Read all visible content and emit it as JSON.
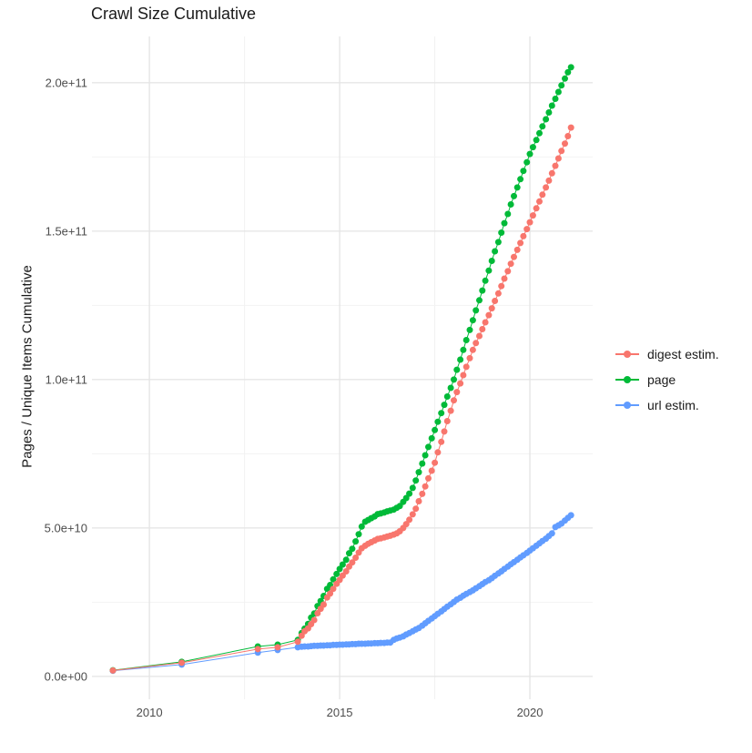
{
  "title": "Crawl Size Cumulative",
  "colors": {
    "background": "#FFFFFF",
    "grid_major": "#E4E4E4",
    "grid_minor": "#F2F2F2",
    "tick_text": "#4D4D4D",
    "title_text": "#1A1A1A",
    "digest": "#F8766D",
    "page": "#00BA38",
    "url": "#619CFF"
  },
  "chart_data": {
    "type": "scatter",
    "title": "Crawl Size Cumulative",
    "xlabel": "",
    "ylabel": "Pages / Unique Items Cumulative",
    "x_unit": "year",
    "value_unit_multiplier": 1000000000,
    "xlim": [
      2008.49,
      2021.65
    ],
    "ylim_e9": [
      -7.7,
      215.6
    ],
    "grid": true,
    "legend_position": "right",
    "x_major_ticks": [
      {
        "value": 2010,
        "label": "2010"
      },
      {
        "value": 2015,
        "label": "2015"
      },
      {
        "value": 2020,
        "label": "2020"
      }
    ],
    "x_minor_ticks": [
      2012.5,
      2017.5
    ],
    "y_major_ticks": [
      {
        "value_e9": 0,
        "label": "0.0e+00"
      },
      {
        "value_e9": 50,
        "label": "5.0e+10"
      },
      {
        "value_e9": 100,
        "label": "1.0e+11"
      },
      {
        "value_e9": 150,
        "label": "1.5e+11"
      },
      {
        "value_e9": 200,
        "label": "2.0e+11"
      }
    ],
    "y_minor_ticks_e9": [
      25,
      75,
      125,
      175
    ],
    "series": [
      {
        "name": "digest estim.",
        "color": "#F8766D",
        "points_e9": [
          [
            2009.04,
            2.0
          ],
          [
            2010.85,
            4.6
          ],
          [
            2012.85,
            9.2
          ],
          [
            2013.37,
            9.8
          ],
          [
            2013.9,
            11.7
          ],
          [
            2014.0,
            13.7
          ],
          [
            2014.08,
            15.2
          ],
          [
            2014.17,
            16.2
          ],
          [
            2014.25,
            17.6
          ],
          [
            2014.33,
            19.0
          ],
          [
            2014.42,
            21.3
          ],
          [
            2014.5,
            22.8
          ],
          [
            2014.58,
            24.2
          ],
          [
            2014.67,
            26.6
          ],
          [
            2014.75,
            27.9
          ],
          [
            2014.83,
            29.5
          ],
          [
            2014.92,
            31.2
          ],
          [
            2015.0,
            32.5
          ],
          [
            2015.08,
            34.0
          ],
          [
            2015.17,
            35.4
          ],
          [
            2015.25,
            37.0
          ],
          [
            2015.33,
            38.4
          ],
          [
            2015.42,
            40.0
          ],
          [
            2015.5,
            41.7
          ],
          [
            2015.58,
            43.2
          ],
          [
            2015.67,
            44.0
          ],
          [
            2015.75,
            44.7
          ],
          [
            2015.83,
            45.2
          ],
          [
            2015.92,
            45.8
          ],
          [
            2016.0,
            46.3
          ],
          [
            2016.08,
            46.5
          ],
          [
            2016.17,
            46.8
          ],
          [
            2016.25,
            47.1
          ],
          [
            2016.33,
            47.4
          ],
          [
            2016.42,
            47.8
          ],
          [
            2016.5,
            48.2
          ],
          [
            2016.58,
            48.9
          ],
          [
            2016.67,
            50.0
          ],
          [
            2016.75,
            51.3
          ],
          [
            2016.83,
            52.8
          ],
          [
            2016.92,
            54.6
          ],
          [
            2017.0,
            56.5
          ],
          [
            2017.08,
            59.0
          ],
          [
            2017.17,
            61.5
          ],
          [
            2017.25,
            64.0
          ],
          [
            2017.33,
            66.7
          ],
          [
            2017.42,
            69.3
          ],
          [
            2017.5,
            72.0
          ],
          [
            2017.58,
            75.5
          ],
          [
            2017.67,
            79.0
          ],
          [
            2017.75,
            82.5
          ],
          [
            2017.83,
            86.0
          ],
          [
            2017.92,
            89.5
          ],
          [
            2018.0,
            93.0
          ],
          [
            2018.08,
            95.8
          ],
          [
            2018.17,
            98.7
          ],
          [
            2018.25,
            101.5
          ],
          [
            2018.33,
            104.3
          ],
          [
            2018.42,
            107.2
          ],
          [
            2018.5,
            110.0
          ],
          [
            2018.58,
            112.3
          ],
          [
            2018.67,
            114.7
          ],
          [
            2018.75,
            117.0
          ],
          [
            2018.83,
            119.3
          ],
          [
            2018.92,
            121.7
          ],
          [
            2019.0,
            124.0
          ],
          [
            2019.08,
            126.5
          ],
          [
            2019.17,
            129.0
          ],
          [
            2019.25,
            131.5
          ],
          [
            2019.33,
            134.0
          ],
          [
            2019.42,
            136.5
          ],
          [
            2019.5,
            139.0
          ],
          [
            2019.58,
            141.3
          ],
          [
            2019.67,
            143.7
          ],
          [
            2019.75,
            146.0
          ],
          [
            2019.83,
            148.3
          ],
          [
            2019.92,
            150.7
          ],
          [
            2020.0,
            153.0
          ],
          [
            2020.08,
            155.3
          ],
          [
            2020.17,
            157.7
          ],
          [
            2020.25,
            160.0
          ],
          [
            2020.33,
            162.3
          ],
          [
            2020.42,
            164.7
          ],
          [
            2020.5,
            167.0
          ],
          [
            2020.58,
            169.5
          ],
          [
            2020.67,
            172.0
          ],
          [
            2020.75,
            174.5
          ],
          [
            2020.83,
            177.0
          ],
          [
            2020.92,
            179.5
          ],
          [
            2021.0,
            182.0
          ],
          [
            2021.08,
            184.9
          ]
        ]
      },
      {
        "name": "page",
        "color": "#00BA38",
        "points_e9": [
          [
            2009.04,
            2.1
          ],
          [
            2010.85,
            4.9
          ],
          [
            2012.85,
            10.1
          ],
          [
            2013.37,
            10.7
          ],
          [
            2013.9,
            12.3
          ],
          [
            2014.0,
            14.6
          ],
          [
            2014.08,
            16.1
          ],
          [
            2014.17,
            17.7
          ],
          [
            2014.25,
            19.8
          ],
          [
            2014.33,
            21.2
          ],
          [
            2014.42,
            23.7
          ],
          [
            2014.5,
            25.4
          ],
          [
            2014.58,
            27.1
          ],
          [
            2014.67,
            29.5
          ],
          [
            2014.75,
            30.8
          ],
          [
            2014.83,
            32.7
          ],
          [
            2014.92,
            34.5
          ],
          [
            2015.0,
            36.2
          ],
          [
            2015.08,
            37.7
          ],
          [
            2015.17,
            39.3
          ],
          [
            2015.25,
            41.5
          ],
          [
            2015.33,
            43.0
          ],
          [
            2015.42,
            45.5
          ],
          [
            2015.5,
            47.9
          ],
          [
            2015.58,
            50.5
          ],
          [
            2015.67,
            52.1
          ],
          [
            2015.75,
            52.7
          ],
          [
            2015.83,
            53.3
          ],
          [
            2015.92,
            53.9
          ],
          [
            2016.0,
            54.7
          ],
          [
            2016.08,
            54.9
          ],
          [
            2016.17,
            55.2
          ],
          [
            2016.25,
            55.6
          ],
          [
            2016.33,
            55.9
          ],
          [
            2016.42,
            56.2
          ],
          [
            2016.5,
            56.8
          ],
          [
            2016.58,
            57.4
          ],
          [
            2016.67,
            58.8
          ],
          [
            2016.75,
            60.1
          ],
          [
            2016.83,
            61.6
          ],
          [
            2016.92,
            63.5
          ],
          [
            2017.0,
            66.0
          ],
          [
            2017.08,
            68.8
          ],
          [
            2017.17,
            71.7
          ],
          [
            2017.25,
            74.5
          ],
          [
            2017.33,
            77.3
          ],
          [
            2017.42,
            80.2
          ],
          [
            2017.5,
            83.0
          ],
          [
            2017.58,
            85.8
          ],
          [
            2017.67,
            88.7
          ],
          [
            2017.75,
            91.5
          ],
          [
            2017.83,
            94.3
          ],
          [
            2017.92,
            97.2
          ],
          [
            2018.0,
            100.0
          ],
          [
            2018.08,
            103.3
          ],
          [
            2018.17,
            106.7
          ],
          [
            2018.25,
            110.0
          ],
          [
            2018.33,
            113.3
          ],
          [
            2018.42,
            116.7
          ],
          [
            2018.5,
            120.0
          ],
          [
            2018.58,
            123.3
          ],
          [
            2018.67,
            126.7
          ],
          [
            2018.75,
            130.0
          ],
          [
            2018.83,
            133.3
          ],
          [
            2018.92,
            136.7
          ],
          [
            2019.0,
            140.0
          ],
          [
            2019.08,
            143.2
          ],
          [
            2019.17,
            146.3
          ],
          [
            2019.25,
            149.5
          ],
          [
            2019.33,
            152.7
          ],
          [
            2019.42,
            155.8
          ],
          [
            2019.5,
            159.0
          ],
          [
            2019.58,
            161.8
          ],
          [
            2019.67,
            164.7
          ],
          [
            2019.75,
            167.5
          ],
          [
            2019.83,
            170.3
          ],
          [
            2019.92,
            173.2
          ],
          [
            2020.0,
            176.0
          ],
          [
            2020.08,
            178.3
          ],
          [
            2020.17,
            180.7
          ],
          [
            2020.25,
            183.0
          ],
          [
            2020.33,
            185.3
          ],
          [
            2020.42,
            187.7
          ],
          [
            2020.5,
            190.0
          ],
          [
            2020.58,
            192.3
          ],
          [
            2020.67,
            194.6
          ],
          [
            2020.75,
            196.9
          ],
          [
            2020.83,
            199.1
          ],
          [
            2020.92,
            201.4
          ],
          [
            2021.0,
            203.5
          ],
          [
            2021.08,
            205.2
          ]
        ]
      },
      {
        "name": "url estim.",
        "color": "#619CFF",
        "points_e9": [
          [
            2009.04,
            1.9
          ],
          [
            2010.85,
            4.0
          ],
          [
            2012.85,
            8.0
          ],
          [
            2013.37,
            8.9
          ],
          [
            2013.9,
            9.8
          ],
          [
            2014.0,
            10.0
          ],
          [
            2014.08,
            10.1
          ],
          [
            2014.17,
            10.1
          ],
          [
            2014.25,
            10.2
          ],
          [
            2014.33,
            10.3
          ],
          [
            2014.42,
            10.3
          ],
          [
            2014.5,
            10.4
          ],
          [
            2014.58,
            10.4
          ],
          [
            2014.67,
            10.5
          ],
          [
            2014.75,
            10.5
          ],
          [
            2014.83,
            10.6
          ],
          [
            2014.92,
            10.6
          ],
          [
            2015.0,
            10.7
          ],
          [
            2015.08,
            10.7
          ],
          [
            2015.17,
            10.8
          ],
          [
            2015.25,
            10.8
          ],
          [
            2015.33,
            10.9
          ],
          [
            2015.42,
            10.9
          ],
          [
            2015.5,
            11.0
          ],
          [
            2015.58,
            11.0
          ],
          [
            2015.67,
            11.0
          ],
          [
            2015.75,
            11.1
          ],
          [
            2015.83,
            11.1
          ],
          [
            2015.92,
            11.2
          ],
          [
            2016.0,
            11.2
          ],
          [
            2016.08,
            11.3
          ],
          [
            2016.17,
            11.3
          ],
          [
            2016.25,
            11.4
          ],
          [
            2016.33,
            11.4
          ],
          [
            2016.42,
            12.3
          ],
          [
            2016.5,
            12.8
          ],
          [
            2016.58,
            13.1
          ],
          [
            2016.67,
            13.5
          ],
          [
            2016.75,
            14.1
          ],
          [
            2016.83,
            14.6
          ],
          [
            2016.92,
            15.2
          ],
          [
            2017.0,
            15.8
          ],
          [
            2017.08,
            16.3
          ],
          [
            2017.17,
            17.1
          ],
          [
            2017.25,
            17.9
          ],
          [
            2017.33,
            18.7
          ],
          [
            2017.42,
            19.5
          ],
          [
            2017.5,
            20.3
          ],
          [
            2017.58,
            21.1
          ],
          [
            2017.67,
            21.9
          ],
          [
            2017.75,
            22.7
          ],
          [
            2017.83,
            23.5
          ],
          [
            2017.92,
            24.3
          ],
          [
            2018.0,
            25.1
          ],
          [
            2018.08,
            25.9
          ],
          [
            2018.17,
            26.5
          ],
          [
            2018.25,
            27.2
          ],
          [
            2018.33,
            27.8
          ],
          [
            2018.42,
            28.4
          ],
          [
            2018.5,
            29.0
          ],
          [
            2018.58,
            29.7
          ],
          [
            2018.67,
            30.4
          ],
          [
            2018.75,
            31.1
          ],
          [
            2018.83,
            31.8
          ],
          [
            2018.92,
            32.4
          ],
          [
            2019.0,
            33.1
          ],
          [
            2019.08,
            33.9
          ],
          [
            2019.17,
            34.7
          ],
          [
            2019.25,
            35.4
          ],
          [
            2019.33,
            36.2
          ],
          [
            2019.42,
            37.0
          ],
          [
            2019.5,
            37.8
          ],
          [
            2019.58,
            38.5
          ],
          [
            2019.67,
            39.3
          ],
          [
            2019.75,
            40.1
          ],
          [
            2019.83,
            40.8
          ],
          [
            2019.92,
            41.6
          ],
          [
            2020.0,
            42.4
          ],
          [
            2020.08,
            43.2
          ],
          [
            2020.17,
            44.0
          ],
          [
            2020.25,
            44.8
          ],
          [
            2020.33,
            45.6
          ],
          [
            2020.42,
            46.4
          ],
          [
            2020.5,
            47.3
          ],
          [
            2020.58,
            48.2
          ],
          [
            2020.67,
            50.3
          ],
          [
            2020.75,
            50.9
          ],
          [
            2020.83,
            51.5
          ],
          [
            2020.92,
            52.5
          ],
          [
            2021.0,
            53.4
          ],
          [
            2021.08,
            54.3
          ]
        ]
      }
    ]
  },
  "legend": {
    "items": [
      {
        "label": "digest estim.",
        "color": "#F8766D"
      },
      {
        "label": "page",
        "color": "#00BA38"
      },
      {
        "label": "url estim.",
        "color": "#619CFF"
      }
    ]
  }
}
